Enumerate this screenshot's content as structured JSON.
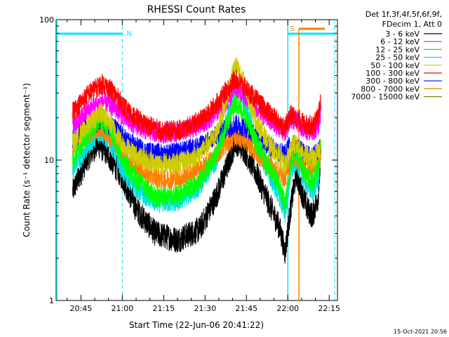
{
  "chart_data": {
    "type": "line",
    "title": "RHESSI Count Rates",
    "xlabel": "Start Time (22-Jun-06 20:41:22)",
    "ylabel": "Count Rate (s⁻¹ detector segment⁻¹)",
    "y_scale": "log",
    "ylim": [
      1,
      100
    ],
    "y_ticks": [
      "1",
      "10",
      "100"
    ],
    "xlim_minutes": [
      20.6,
      22.3
    ],
    "x_ticks": [
      "20:45",
      "21:00",
      "21:15",
      "21:30",
      "21:45",
      "22:00",
      "22:15"
    ],
    "legend_header": [
      "Det 1f,3f,4f,5f,6f,9f,",
      "FDecim 1, Att 0"
    ],
    "legend_position": "right",
    "timestamp": "15-Oct-2021 20:56",
    "annotations": {
      "night_label": "N",
      "saa_label": "S",
      "night_end": "21:00",
      "saa_start": "22:00",
      "saa_end": "22:17",
      "attenuator_time": "22:04"
    },
    "series": [
      {
        "name": "3 - 6 keV",
        "color": "#000000",
        "points": [
          [
            "20:42",
            6.0
          ],
          [
            "20:47",
            10.0
          ],
          [
            "20:51",
            13.0
          ],
          [
            "20:54",
            11.5
          ],
          [
            "21:00",
            7.5
          ],
          [
            "21:05",
            4.5
          ],
          [
            "21:12",
            3.0
          ],
          [
            "21:20",
            2.7
          ],
          [
            "21:28",
            3.2
          ],
          [
            "21:34",
            5.5
          ],
          [
            "21:38",
            9.0
          ],
          [
            "21:41",
            13.5
          ],
          [
            "21:44",
            12.0
          ],
          [
            "21:48",
            8.5
          ],
          [
            "21:53",
            5.0
          ],
          [
            "21:57",
            3.3
          ],
          [
            "21:59",
            2.2
          ],
          [
            "22:01",
            4.5
          ],
          [
            "22:03",
            8.0
          ],
          [
            "22:05",
            6.0
          ],
          [
            "22:07",
            4.5
          ],
          [
            "22:09",
            4.0
          ],
          [
            "22:11",
            5.5
          ],
          [
            "22:12",
            11.0
          ]
        ]
      },
      {
        "name": "6 - 12 keV",
        "color": "#ff00ff",
        "points": [
          [
            "20:42",
            17.0
          ],
          [
            "20:48",
            23.0
          ],
          [
            "20:53",
            26.0
          ],
          [
            "20:57",
            24.0
          ],
          [
            "21:02",
            19.0
          ],
          [
            "21:08",
            16.5
          ],
          [
            "21:15",
            15.5
          ],
          [
            "21:22",
            16.0
          ],
          [
            "21:30",
            18.5
          ],
          [
            "21:36",
            24.0
          ],
          [
            "21:41",
            31.0
          ],
          [
            "21:45",
            28.0
          ],
          [
            "21:50",
            22.0
          ],
          [
            "21:55",
            18.0
          ],
          [
            "21:59",
            16.0
          ],
          [
            "22:01",
            20.0
          ],
          [
            "22:03",
            19.0
          ],
          [
            "22:06",
            16.5
          ],
          [
            "22:09",
            16.0
          ],
          [
            "22:11",
            17.5
          ],
          [
            "22:12",
            22.0
          ]
        ]
      },
      {
        "name": "12 - 25 keV",
        "color": "#00ff00",
        "points": [
          [
            "20:42",
            10.0
          ],
          [
            "20:48",
            16.0
          ],
          [
            "20:52",
            20.0
          ],
          [
            "20:56",
            16.0
          ],
          [
            "21:00",
            10.0
          ],
          [
            "21:06",
            7.0
          ],
          [
            "21:12",
            5.5
          ],
          [
            "21:20",
            5.5
          ],
          [
            "21:28",
            7.0
          ],
          [
            "21:34",
            11.0
          ],
          [
            "21:38",
            18.0
          ],
          [
            "21:41",
            26.0
          ],
          [
            "21:44",
            22.0
          ],
          [
            "21:48",
            14.0
          ],
          [
            "21:53",
            9.0
          ],
          [
            "21:57",
            6.5
          ],
          [
            "21:59",
            4.8
          ],
          [
            "22:01",
            9.0
          ],
          [
            "22:03",
            12.0
          ],
          [
            "22:05",
            9.0
          ],
          [
            "22:07",
            7.5
          ],
          [
            "22:09",
            7.0
          ],
          [
            "22:11",
            8.5
          ],
          [
            "22:12",
            14.0
          ]
        ]
      },
      {
        "name": "25 - 50 keV",
        "color": "#00e0e0",
        "points": [
          [
            "20:42",
            8.5
          ],
          [
            "20:48",
            13.0
          ],
          [
            "20:52",
            16.0
          ],
          [
            "20:56",
            13.0
          ],
          [
            "21:00",
            8.5
          ],
          [
            "21:06",
            6.0
          ],
          [
            "21:12",
            5.0
          ],
          [
            "21:20",
            5.0
          ],
          [
            "21:28",
            6.5
          ],
          [
            "21:34",
            10.0
          ],
          [
            "21:38",
            20.0
          ],
          [
            "21:41",
            36.0
          ],
          [
            "21:44",
            28.0
          ],
          [
            "21:48",
            14.0
          ],
          [
            "21:53",
            8.0
          ],
          [
            "21:57",
            5.5
          ],
          [
            "21:59",
            4.2
          ],
          [
            "22:01",
            8.0
          ],
          [
            "22:03",
            10.0
          ],
          [
            "22:05",
            8.0
          ],
          [
            "22:07",
            6.5
          ],
          [
            "22:09",
            6.0
          ],
          [
            "22:11",
            7.0
          ],
          [
            "22:12",
            12.0
          ]
        ]
      },
      {
        "name": "50 - 100 keV",
        "color": "#cccc00",
        "points": [
          [
            "20:42",
            13.0
          ],
          [
            "20:48",
            18.0
          ],
          [
            "20:52",
            22.0
          ],
          [
            "20:56",
            18.0
          ],
          [
            "21:00",
            13.0
          ],
          [
            "21:06",
            10.5
          ],
          [
            "21:12",
            9.5
          ],
          [
            "21:20",
            9.5
          ],
          [
            "21:28",
            11.0
          ],
          [
            "21:34",
            15.0
          ],
          [
            "21:38",
            28.0
          ],
          [
            "21:41",
            48.0
          ],
          [
            "21:44",
            36.0
          ],
          [
            "21:48",
            20.0
          ],
          [
            "21:53",
            13.0
          ],
          [
            "21:57",
            10.5
          ],
          [
            "21:59",
            9.0
          ],
          [
            "22:01",
            12.5
          ],
          [
            "22:03",
            13.0
          ],
          [
            "22:05",
            11.5
          ],
          [
            "22:07",
            10.5
          ],
          [
            "22:09",
            10.0
          ],
          [
            "22:11",
            11.0
          ],
          [
            "22:12",
            13.0
          ]
        ]
      },
      {
        "name": "100 - 300 keV",
        "color": "#ff0000",
        "points": [
          [
            "20:42",
            22.0
          ],
          [
            "20:48",
            30.0
          ],
          [
            "20:53",
            35.0
          ],
          [
            "20:57",
            30.0
          ],
          [
            "21:02",
            22.0
          ],
          [
            "21:08",
            18.0
          ],
          [
            "21:15",
            16.0
          ],
          [
            "21:22",
            16.5
          ],
          [
            "21:30",
            20.0
          ],
          [
            "21:36",
            28.0
          ],
          [
            "21:41",
            38.0
          ],
          [
            "21:45",
            32.0
          ],
          [
            "21:50",
            25.0
          ],
          [
            "21:55",
            20.0
          ],
          [
            "21:59",
            17.0
          ],
          [
            "22:01",
            21.0
          ],
          [
            "22:03",
            20.0
          ],
          [
            "22:06",
            18.0
          ],
          [
            "22:09",
            17.5
          ],
          [
            "22:11",
            20.0
          ],
          [
            "22:12",
            27.0
          ]
        ]
      },
      {
        "name": "300 - 800 keV",
        "color": "#0000ff",
        "points": [
          [
            "20:42",
            14.0
          ],
          [
            "20:48",
            17.5
          ],
          [
            "20:52",
            19.0
          ],
          [
            "20:57",
            17.0
          ],
          [
            "21:02",
            13.5
          ],
          [
            "21:08",
            11.5
          ],
          [
            "21:15",
            11.0
          ],
          [
            "21:22",
            11.5
          ],
          [
            "21:30",
            13.0
          ],
          [
            "21:36",
            16.0
          ],
          [
            "21:41",
            18.0
          ],
          [
            "21:45",
            17.0
          ],
          [
            "21:50",
            14.0
          ],
          [
            "21:55",
            12.0
          ],
          [
            "21:59",
            11.0
          ],
          [
            "22:01",
            13.0
          ],
          [
            "22:03",
            12.5
          ],
          [
            "22:06",
            11.0
          ],
          [
            "22:09",
            10.5
          ],
          [
            "22:11",
            11.5
          ],
          [
            "22:12",
            13.0
          ]
        ]
      },
      {
        "name": "800 - 7000 keV",
        "color": "#ff8000",
        "points": [
          [
            "20:42",
            12.0
          ],
          [
            "20:48",
            15.5
          ],
          [
            "20:52",
            17.0
          ],
          [
            "20:57",
            14.0
          ],
          [
            "21:02",
            10.0
          ],
          [
            "21:08",
            8.0
          ],
          [
            "21:15",
            7.2
          ],
          [
            "21:22",
            7.5
          ],
          [
            "21:30",
            9.0
          ],
          [
            "21:36",
            12.0
          ],
          [
            "21:41",
            15.0
          ],
          [
            "21:45",
            13.5
          ],
          [
            "21:50",
            10.5
          ],
          [
            "21:55",
            8.5
          ],
          [
            "21:59",
            7.5
          ],
          [
            "22:01",
            10.0
          ],
          [
            "22:03",
            10.5
          ],
          [
            "22:05",
            9.0
          ],
          [
            "22:07",
            8.5
          ],
          [
            "22:09",
            8.5
          ],
          [
            "22:11",
            9.5
          ],
          [
            "22:12",
            11.0
          ]
        ]
      },
      {
        "name": "7000 - 15000 keV",
        "color": "#808000",
        "points": []
      }
    ]
  }
}
